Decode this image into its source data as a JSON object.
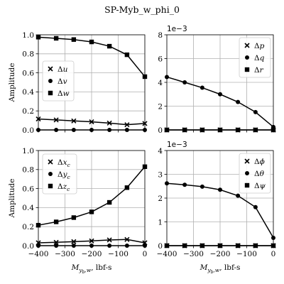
{
  "figure": {
    "suptitle": "SP-Myb_w_phi_0"
  },
  "chart_data": [
    {
      "type": "line",
      "panel": "top-left",
      "title": "",
      "xlabel": "",
      "ylabel": "Amplitude",
      "xlim": [
        -400,
        0
      ],
      "ylim": [
        0,
        1.0
      ],
      "xticks": [
        -400,
        -300,
        -200,
        -100,
        0
      ],
      "yticks": [
        0.0,
        0.2,
        0.4,
        0.6,
        0.8,
        1.0
      ],
      "show_xtick_labels": false,
      "ytick_format": "fixed1",
      "sci_exponent": null,
      "grid": true,
      "legend_loc": "center-left",
      "x": [
        -400,
        -333,
        -267,
        -200,
        -133,
        -67,
        0
      ],
      "series": [
        {
          "name": "$\\Delta u$",
          "legend": [
            "Δ",
            "u"
          ],
          "marker": "x",
          "values": [
            0.115,
            0.105,
            0.095,
            0.085,
            0.072,
            0.055,
            0.068
          ]
        },
        {
          "name": "$\\Delta v$",
          "legend": [
            "Δ",
            "v"
          ],
          "marker": "circle",
          "values": [
            0.0,
            0.0,
            0.0,
            0.0,
            0.0,
            0.0,
            0.0
          ]
        },
        {
          "name": "$\\Delta w$",
          "legend": [
            "Δ",
            "w"
          ],
          "marker": "square",
          "values": [
            0.975,
            0.963,
            0.95,
            0.925,
            0.88,
            0.79,
            0.56
          ]
        }
      ]
    },
    {
      "type": "line",
      "panel": "top-right",
      "title": "",
      "xlabel": "",
      "ylabel": "",
      "xlim": [
        -400,
        0
      ],
      "ylim": [
        0,
        8
      ],
      "xticks": [
        -400,
        -300,
        -200,
        -100,
        0
      ],
      "yticks": [
        0,
        2,
        4,
        6,
        8
      ],
      "show_xtick_labels": false,
      "ytick_format": "int",
      "sci_exponent": "1e−3",
      "grid": true,
      "legend_loc": "upper-right",
      "x": [
        -400,
        -333,
        -267,
        -200,
        -133,
        -67,
        0
      ],
      "series": [
        {
          "name": "$\\Delta p$",
          "legend": [
            "Δ",
            "p"
          ],
          "marker": "x",
          "values": [
            0,
            0,
            0,
            0,
            0,
            0,
            0
          ]
        },
        {
          "name": "$\\Delta q$",
          "legend": [
            "Δ",
            "q"
          ],
          "marker": "circle",
          "values": [
            4.45,
            4.0,
            3.55,
            3.0,
            2.35,
            1.5,
            0.25
          ]
        },
        {
          "name": "$\\Delta r$",
          "legend": [
            "Δ",
            "r"
          ],
          "marker": "square",
          "values": [
            0,
            0,
            0,
            0,
            0,
            0,
            0
          ]
        }
      ]
    },
    {
      "type": "line",
      "panel": "bottom-left",
      "title": "",
      "xlabel": "M_{y_b,w}, lbf-s",
      "xlabel_parts": {
        "main": "M",
        "sub": "y",
        "subsub": "b",
        "rest": ",w",
        "tail": ", lbf-s"
      },
      "ylabel": "Amplitude",
      "xlim": [
        -400,
        0
      ],
      "ylim": [
        0,
        1.0
      ],
      "xticks": [
        -400,
        -300,
        -200,
        -100,
        0
      ],
      "xtick_labels": [
        "−400",
        "−300",
        "−200",
        "−100",
        "0"
      ],
      "yticks": [
        0.0,
        0.2,
        0.4,
        0.6,
        0.8,
        1.0
      ],
      "show_xtick_labels": true,
      "ytick_format": "fixed1",
      "sci_exponent": null,
      "grid": true,
      "legend_loc": "upper-left",
      "x": [
        -400,
        -333,
        -267,
        -200,
        -133,
        -67,
        0
      ],
      "series": [
        {
          "name": "$\\Delta x_c$",
          "legend": [
            "Δ",
            "x",
            "c"
          ],
          "marker": "x",
          "values": [
            0.03,
            0.035,
            0.042,
            0.05,
            0.06,
            0.065,
            0.03
          ]
        },
        {
          "name": "$\\Delta y_c$",
          "legend": [
            "Δ",
            "y",
            "c"
          ],
          "marker": "circle",
          "values": [
            0.0,
            0.0,
            0.0,
            0.0,
            0.0,
            0.0,
            0.0
          ]
        },
        {
          "name": "$\\Delta z_c$",
          "legend": [
            "Δ",
            "z",
            "c"
          ],
          "marker": "square",
          "values": [
            0.215,
            0.25,
            0.295,
            0.355,
            0.455,
            0.61,
            0.83
          ]
        }
      ]
    },
    {
      "type": "line",
      "panel": "bottom-right",
      "title": "",
      "xlabel": "M_{y_b,w}, lbf-s",
      "xlabel_parts": {
        "main": "M",
        "sub": "y",
        "subsub": "b",
        "rest": ",w",
        "tail": ", lbf-s"
      },
      "ylabel": "",
      "xlim": [
        -400,
        0
      ],
      "ylim": [
        0,
        4
      ],
      "xticks": [
        -400,
        -300,
        -200,
        -100,
        0
      ],
      "xtick_labels": [
        "−400",
        "−300",
        "−200",
        "−100",
        "0"
      ],
      "yticks": [
        0,
        1,
        2,
        3,
        4
      ],
      "show_xtick_labels": true,
      "ytick_format": "int",
      "sci_exponent": "1e−3",
      "grid": true,
      "legend_loc": "upper-right",
      "x": [
        -400,
        -333,
        -267,
        -200,
        -133,
        -67,
        0
      ],
      "series": [
        {
          "name": "$\\Delta \\phi$",
          "legend": [
            "Δ",
            "ϕ"
          ],
          "marker": "x",
          "values": [
            0,
            0,
            0,
            0,
            0,
            0,
            0
          ]
        },
        {
          "name": "$\\Delta \\theta$",
          "legend": [
            "Δ",
            "θ"
          ],
          "marker": "circle",
          "values": [
            2.62,
            2.56,
            2.48,
            2.35,
            2.1,
            1.62,
            0.33
          ]
        },
        {
          "name": "$\\Delta \\psi$",
          "legend": [
            "Δ",
            "ψ"
          ],
          "marker": "square",
          "values": [
            0,
            0,
            0,
            0,
            0,
            0,
            0
          ]
        }
      ]
    }
  ]
}
